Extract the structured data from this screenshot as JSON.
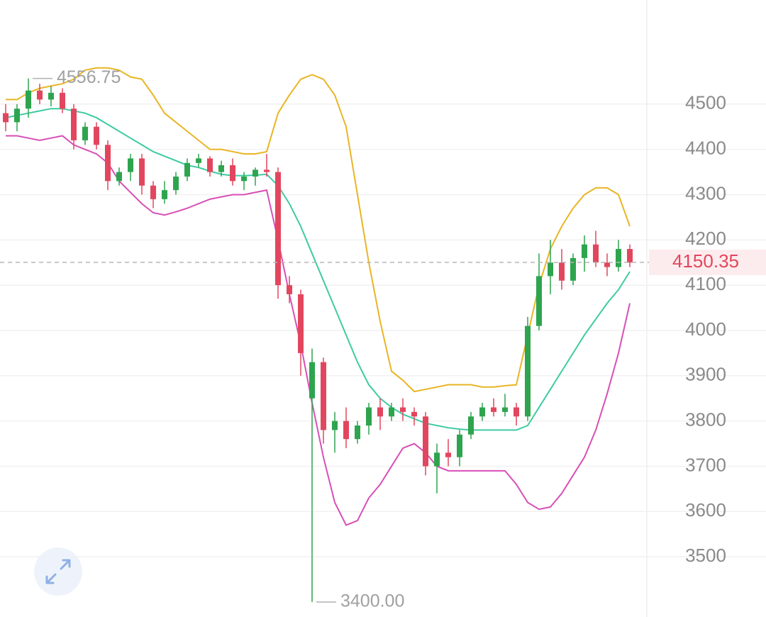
{
  "chart_data": {
    "type": "candlestick",
    "up_color": "#2ea44f",
    "down_color": "#e2465e",
    "ylim": [
      3367,
      4730
    ],
    "yticks": [
      3500,
      3600,
      3700,
      3800,
      3900,
      4000,
      4100,
      4200,
      4300,
      4400,
      4500
    ],
    "grid": true,
    "open": [
      4480,
      4460,
      4490,
      4530,
      4510,
      4525,
      4490,
      4420,
      4450,
      4410,
      4330,
      4350,
      4380,
      4320,
      4290,
      4310,
      4340,
      4370,
      4380,
      4350,
      4365,
      4330,
      4340,
      4355,
      4350,
      4100,
      4080,
      3850,
      3930,
      3780,
      3800,
      3760,
      3790,
      3830,
      3810,
      3830,
      3820,
      3810,
      3700,
      3730,
      3720,
      3770,
      3810,
      3830,
      3820,
      3830,
      3810,
      4010,
      4120,
      4150,
      4110,
      4160,
      4190,
      4150,
      4140,
      4180
    ],
    "high": [
      4500,
      4500,
      4556.75,
      4545,
      4540,
      4535,
      4500,
      4460,
      4460,
      4420,
      4360,
      4390,
      4390,
      4330,
      4330,
      4350,
      4380,
      4390,
      4385,
      4375,
      4380,
      4350,
      4360,
      4390,
      4360,
      4120,
      4090,
      3960,
      3940,
      3820,
      3830,
      3800,
      3840,
      3850,
      3840,
      3850,
      3830,
      3820,
      3750,
      3760,
      3780,
      3820,
      3840,
      3850,
      3860,
      3840,
      4030,
      4170,
      4200,
      4180,
      4170,
      4210,
      4220,
      4170,
      4200,
      4190
    ],
    "low": [
      4440,
      4440,
      4470,
      4500,
      4495,
      4480,
      4400,
      4410,
      4400,
      4310,
      4320,
      4330,
      4300,
      4270,
      4280,
      4300,
      4330,
      4360,
      4340,
      4340,
      4320,
      4310,
      4320,
      4340,
      4070,
      4060,
      3900,
      3400,
      3750,
      3730,
      3740,
      3750,
      3770,
      3780,
      3800,
      3800,
      3790,
      3680,
      3640,
      3700,
      3700,
      3760,
      3800,
      3810,
      3810,
      3790,
      3800,
      4000,
      4080,
      4090,
      4100,
      4130,
      4140,
      4120,
      4130,
      4140
    ],
    "close": [
      4460,
      4490,
      4530,
      4510,
      4525,
      4490,
      4420,
      4450,
      4410,
      4330,
      4350,
      4380,
      4320,
      4290,
      4310,
      4340,
      4370,
      4380,
      4350,
      4365,
      4330,
      4340,
      4355,
      4350,
      4100,
      4080,
      3950,
      3930,
      3780,
      3800,
      3760,
      3790,
      3830,
      3810,
      3830,
      3820,
      3810,
      3700,
      3730,
      3720,
      3770,
      3810,
      3830,
      3820,
      3830,
      3810,
      4010,
      4120,
      4150,
      4110,
      4160,
      4190,
      4150,
      4140,
      4180,
      4150
    ],
    "series": [
      {
        "color": "#e9b525",
        "values": [
          4510,
          4510,
          4525,
          4535,
          4540,
          4545,
          4555,
          4575,
          4580,
          4580,
          4575,
          4560,
          4555,
          4520,
          4480,
          4460,
          4440,
          4420,
          4400,
          4400,
          4395,
          4390,
          4390,
          4395,
          4480,
          4520,
          4555,
          4565,
          4555,
          4520,
          4450,
          4300,
          4150,
          4020,
          3910,
          3890,
          3865,
          3870,
          3875,
          3880,
          3880,
          3880,
          3875,
          3875,
          3878,
          3880,
          3990,
          4100,
          4180,
          4230,
          4270,
          4300,
          4315,
          4315,
          4300,
          4230
        ]
      },
      {
        "color": "#3ecba2",
        "values": [
          4470,
          4475,
          4480,
          4485,
          4490,
          4490,
          4485,
          4480,
          4470,
          4455,
          4440,
          4425,
          4410,
          4395,
          4385,
          4375,
          4365,
          4360,
          4352,
          4345,
          4342,
          4342,
          4343,
          4345,
          4320,
          4280,
          4230,
          4170,
          4110,
          4050,
          3990,
          3930,
          3880,
          3850,
          3830,
          3815,
          3805,
          3795,
          3790,
          3785,
          3782,
          3780,
          3780,
          3780,
          3780,
          3780,
          3790,
          3830,
          3870,
          3910,
          3950,
          3990,
          4025,
          4060,
          4090,
          4130
        ]
      },
      {
        "color": "#d84fb6",
        "values": [
          4430,
          4430,
          4425,
          4420,
          4425,
          4430,
          4410,
          4400,
          4390,
          4370,
          4330,
          4305,
          4280,
          4260,
          4255,
          4262,
          4270,
          4280,
          4290,
          4295,
          4300,
          4300,
          4305,
          4310,
          4200,
          4080,
          3970,
          3840,
          3720,
          3620,
          3570,
          3580,
          3630,
          3660,
          3700,
          3740,
          3750,
          3730,
          3700,
          3690,
          3690,
          3690,
          3690,
          3690,
          3690,
          3660,
          3620,
          3605,
          3610,
          3640,
          3680,
          3720,
          3780,
          3860,
          3950,
          4060
        ]
      }
    ],
    "annotations": [
      {
        "value": 4556.75,
        "label": "4556.75"
      },
      {
        "value": 3400,
        "label": "3400.00"
      }
    ],
    "current_price": {
      "value": 4150.35,
      "label": "4150.35"
    }
  }
}
